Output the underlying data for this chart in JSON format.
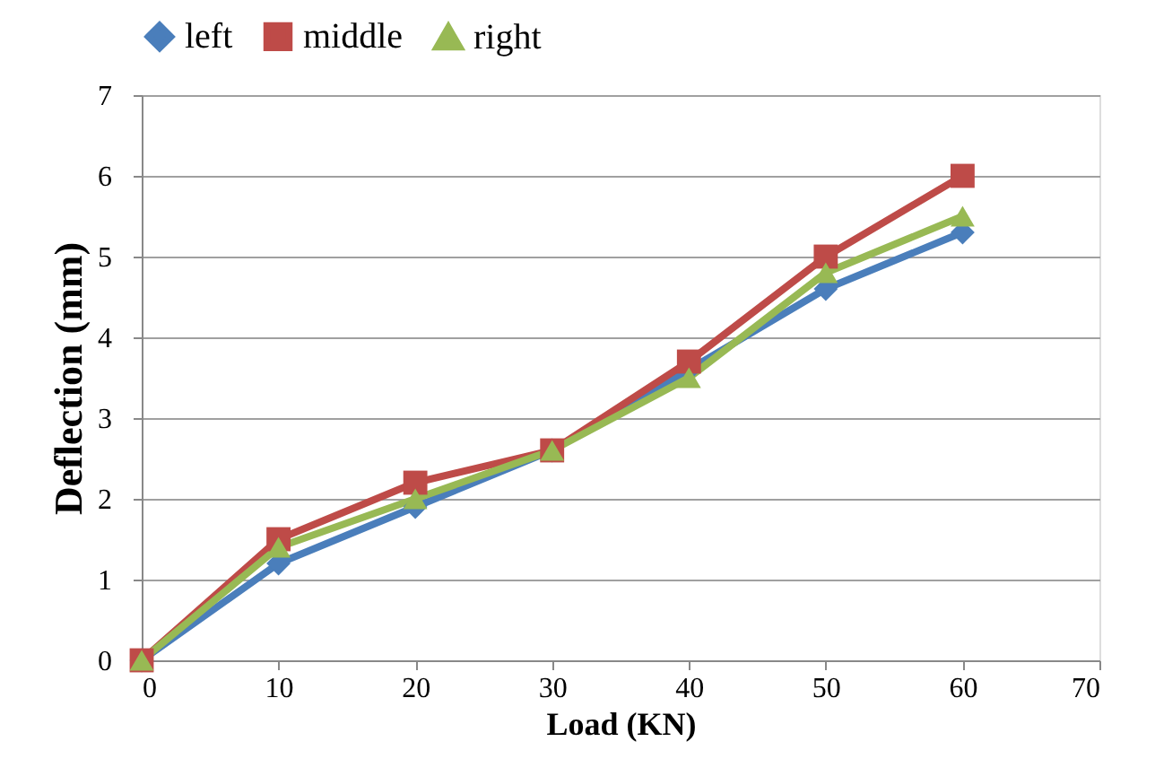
{
  "chart_data": {
    "type": "line",
    "xlabel": "Load (KN)",
    "ylabel": "Deflection (mm)",
    "x": [
      0,
      10,
      20,
      30,
      40,
      50,
      60
    ],
    "series": [
      {
        "name": "left",
        "color": "#4a7ebb",
        "marker": "diamond",
        "values": [
          0,
          1.2,
          1.9,
          2.6,
          3.6,
          4.6,
          5.3
        ]
      },
      {
        "name": "middle",
        "color": "#be4b48",
        "marker": "square",
        "values": [
          0,
          1.5,
          2.2,
          2.6,
          3.7,
          5.0,
          6.0
        ]
      },
      {
        "name": "right",
        "color": "#98b954",
        "marker": "triangle",
        "values": [
          0,
          1.4,
          2.0,
          2.6,
          3.5,
          4.8,
          5.5
        ]
      }
    ],
    "xlim": [
      0,
      70
    ],
    "xticks": [
      0,
      10,
      20,
      30,
      40,
      50,
      60,
      70
    ],
    "ylim": [
      0,
      7
    ],
    "yticks": [
      0,
      1,
      2,
      3,
      4,
      5,
      6,
      7
    ],
    "grid": "y",
    "legend": "top",
    "line_style": "solid"
  }
}
